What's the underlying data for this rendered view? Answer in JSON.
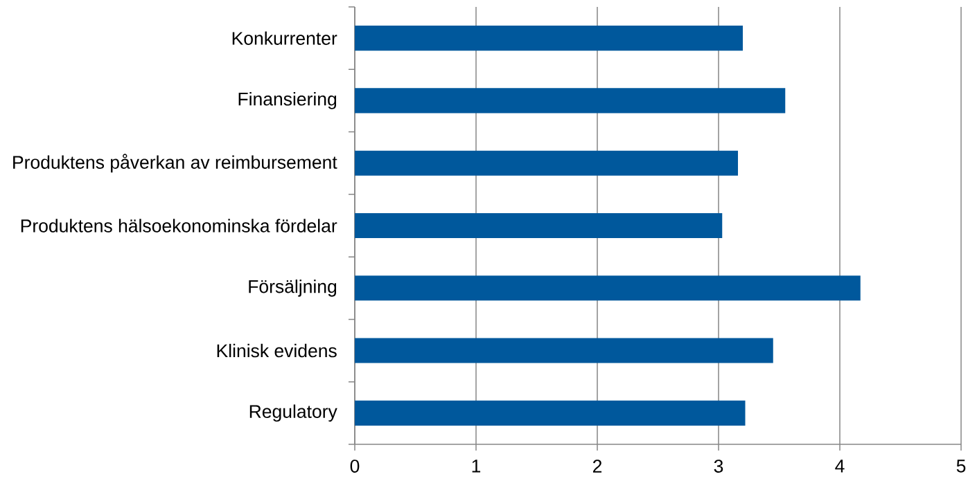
{
  "chart_data": {
    "type": "bar",
    "orientation": "horizontal",
    "categories": [
      "Konkurrenter",
      "Finansiering",
      "Produktens påverkan av reimbursement",
      "Produktens hälsoekonominska fördelar",
      "Försäljning",
      "Klinisk evidens",
      "Regulatory"
    ],
    "values": [
      3.2,
      3.55,
      3.16,
      3.03,
      4.17,
      3.45,
      3.22
    ],
    "color": "#00589c",
    "xlim": [
      0,
      5
    ],
    "xticks": [
      0,
      1,
      2,
      3,
      4,
      5
    ],
    "grid": "x"
  }
}
